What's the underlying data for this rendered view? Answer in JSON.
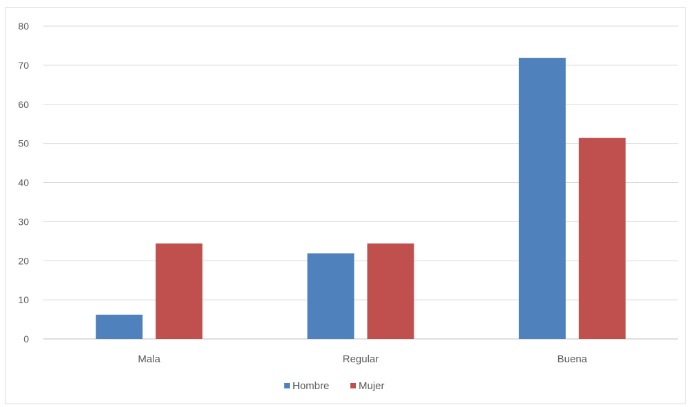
{
  "chart_data": {
    "type": "bar",
    "categories": [
      "Mala",
      "Regular",
      "Buena"
    ],
    "series": [
      {
        "name": "Hombre",
        "values": [
          6.2,
          21.9,
          71.9
        ],
        "color": "#4f81bd"
      },
      {
        "name": "Mujer",
        "values": [
          24.4,
          24.4,
          51.4
        ],
        "color": "#c0504d"
      }
    ],
    "title": "",
    "xlabel": "",
    "ylabel": "",
    "ylim": [
      0,
      80
    ],
    "yticks": [
      0,
      10,
      20,
      30,
      40,
      50,
      60,
      70,
      80
    ],
    "ytick_labels": [
      "0",
      "10",
      "20",
      "30",
      "40",
      "50",
      "60",
      "70",
      "80"
    ],
    "grid": true,
    "legend_position": "bottom"
  }
}
